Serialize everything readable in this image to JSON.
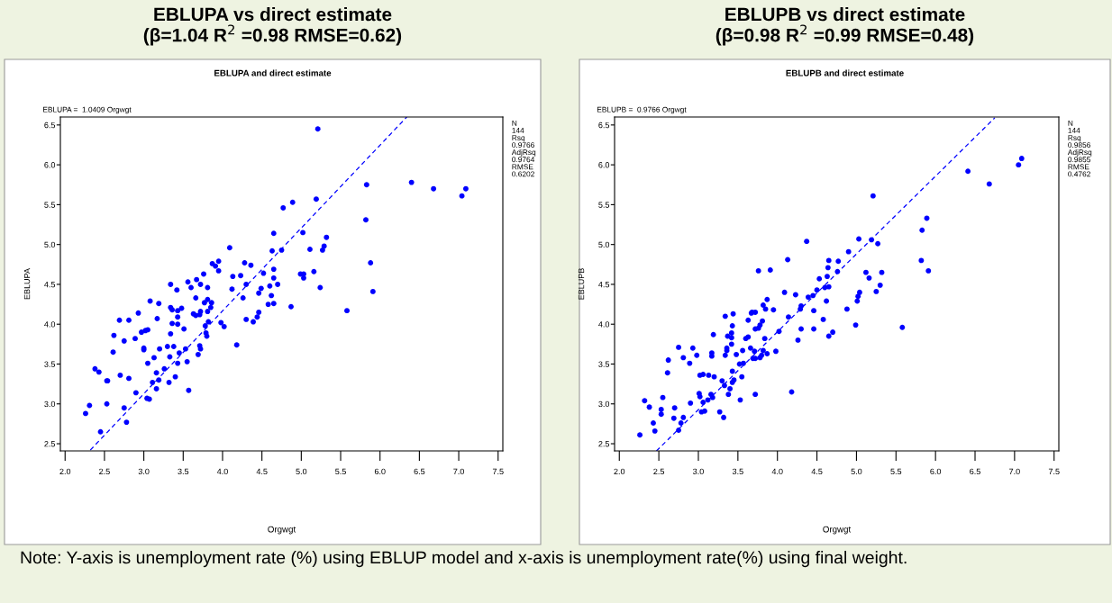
{
  "chart_data": [
    {
      "type": "scatter",
      "title": "EBLUPA vs direct estimate\n(β=1.04 R$^{2}$ =0.98 RMSE=0.62)",
      "subtitle": "EBLUPA and direct estimate",
      "xlabel": "Orgwgt",
      "ylabel": "EBLUPA",
      "annotations": [
        "EBLUPA =  1.0409 Orgwgt",
        "N\n144\nRsq\n0.9766\nAdjRsq\n0.9764\nRMSE\n0.6202",
        "Note: Y-axis is unemployment rate (%) using EBLUP model and x-axis is unemployment rate(%) using final weight."
      ],
      "xlim": [
        1.94,
        7.56
      ],
      "ylim": [
        2.41,
        6.6
      ],
      "xticks": [
        {
          "value": 2,
          "label": "2.0"
        },
        2.5,
        {
          "value": 3,
          "label": "3.0"
        },
        3.5,
        {
          "value": 4,
          "label": "4.0"
        },
        4.5,
        {
          "value": 5,
          "label": "5.0"
        },
        5.5,
        {
          "value": 6,
          "label": "6.0"
        },
        6.5,
        {
          "value": 7,
          "label": "7.0"
        },
        7.5
      ],
      "yticks": [
        2.5,
        {
          "value": 3,
          "label": "3.0"
        },
        3.5,
        {
          "value": 4,
          "label": "4.0"
        },
        4.5,
        {
          "value": 5,
          "label": "5.0"
        },
        5.5,
        {
          "value": 6,
          "label": "6.0"
        },
        6.5
      ],
      "grid": false,
      "legend": false,
      "series": [
        {
          "type": "scatter",
          "marker": "circle",
          "color": "#0000ff",
          "x": [
            5.21,
            5.83,
            6.4,
            6.68,
            7.04,
            7.09,
            5.19,
            4.89,
            4.77,
            4.65,
            5.02,
            5.82,
            5.32,
            5.29,
            5.27,
            5.11,
            4.75,
            4.63,
            4.09,
            5.88,
            3.87,
            3.91,
            3.95,
            3.95,
            4.28,
            4.36,
            3.76,
            4.65,
            5.16,
            4.52,
            4.99,
            5.03,
            4.13,
            4.23,
            4.65,
            5.03,
            3.34,
            3.42,
            3.56,
            3.6,
            3.67,
            3.72,
            3.81,
            3.66,
            3.77,
            3.81,
            3.86,
            3.85,
            3.81,
            3.72,
            3.71,
            3.63,
            3.66,
            4.12,
            4.3,
            4.26,
            4.49,
            4.46,
            4.6,
            4.7,
            4.62,
            4.58,
            4.65,
            4.46,
            4.44,
            4.3,
            4.39,
            4.87,
            5.24,
            5.91,
            5.58,
            4.18,
            3.98,
            4.02,
            3.82,
            3.78,
            3.79,
            3.8,
            3.71,
            3.72,
            3.69,
            3.48,
            3.43,
            3.43,
            3.43,
            3.36,
            3.36,
            3.34,
            3.51,
            3.34,
            3.3,
            3.38,
            3.33,
            3.45,
            3.53,
            3.55,
            3.43,
            3.4,
            3.32,
            3.57,
            3.26,
            3.19,
            3.16,
            3.16,
            3.11,
            3.13,
            3.05,
            3.04,
            3.07,
            3.08,
            3.19,
            3.17,
            3.2,
            3.05,
            3.02,
            2.97,
            2.89,
            2.93,
            2.81,
            2.69,
            2.75,
            2.62,
            2.61,
            3.0,
            3.0,
            2.9,
            2.38,
            2.43,
            2.53,
            2.54,
            2.7,
            2.81,
            2.26,
            2.31,
            2.53,
            2.75,
            2.78,
            2.45
          ],
          "values": [
            6.45,
            5.75,
            5.78,
            5.7,
            5.61,
            5.7,
            5.57,
            5.53,
            5.46,
            5.14,
            5.15,
            5.31,
            5.09,
            4.98,
            4.93,
            4.94,
            4.93,
            4.92,
            4.96,
            4.77,
            4.76,
            4.73,
            4.79,
            4.67,
            4.77,
            4.74,
            4.63,
            4.69,
            4.66,
            4.64,
            4.63,
            4.63,
            4.6,
            4.61,
            4.58,
            4.58,
            4.5,
            4.43,
            4.53,
            4.46,
            4.56,
            4.5,
            4.46,
            4.33,
            4.27,
            4.31,
            4.27,
            4.21,
            4.16,
            4.16,
            4.12,
            4.13,
            4.11,
            4.44,
            4.5,
            4.33,
            4.45,
            4.39,
            4.48,
            4.5,
            4.36,
            4.25,
            4.26,
            4.15,
            4.09,
            4.06,
            4.03,
            4.22,
            4.46,
            4.41,
            4.17,
            3.74,
            4.02,
            3.97,
            4.03,
            3.98,
            3.89,
            3.85,
            3.73,
            3.69,
            3.62,
            4.2,
            4.17,
            4.09,
            4.0,
            4.01,
            4.18,
            4.21,
            3.94,
            3.88,
            3.72,
            3.72,
            3.59,
            3.64,
            3.69,
            3.53,
            3.51,
            3.34,
            3.27,
            3.17,
            3.44,
            3.3,
            3.39,
            3.19,
            3.27,
            3.58,
            3.51,
            3.07,
            3.06,
            4.29,
            4.26,
            4.07,
            3.69,
            3.93,
            3.92,
            3.9,
            3.82,
            4.14,
            4.05,
            4.05,
            3.79,
            3.86,
            3.65,
            3.68,
            3.7,
            3.14,
            3.44,
            3.4,
            3.29,
            3.29,
            3.36,
            3.32,
            2.88,
            2.98,
            3.0,
            2.95,
            2.77,
            2.65
          ]
        },
        {
          "type": "line",
          "line_style": "dashed",
          "color": "#0000ff",
          "x": [
            2.32,
            6.34
          ],
          "values": [
            2.42,
            6.6
          ]
        }
      ]
    },
    {
      "type": "scatter",
      "title": "EBLUPB vs direct estimate\n(β=0.98 R$^{2}$ =0.99 RMSE=0.48)",
      "subtitle": "EBLUPB and direct estimate",
      "xlabel": "Orgwgt",
      "ylabel": "EBLUPB",
      "annotations": [
        "EBLUPB =  0.9766 Orgwgt",
        "N\n144\nRsq\n0.9856\nAdjRsq\n0.9855\nRMSE\n0.4762"
      ],
      "xlim": [
        1.94,
        7.56
      ],
      "ylim": [
        2.41,
        6.6
      ],
      "xticks": [
        {
          "value": 2,
          "label": "2.0"
        },
        2.5,
        {
          "value": 3,
          "label": "3.0"
        },
        3.5,
        {
          "value": 4,
          "label": "4.0"
        },
        4.5,
        {
          "value": 5,
          "label": "5.0"
        },
        5.5,
        {
          "value": 6,
          "label": "6.0"
        },
        6.5,
        {
          "value": 7,
          "label": "7.0"
        },
        7.5
      ],
      "yticks": [
        2.5,
        {
          "value": 3,
          "label": "3.0"
        },
        3.5,
        {
          "value": 4,
          "label": "4.0"
        },
        4.5,
        {
          "value": 5,
          "label": "5.0"
        },
        5.5,
        {
          "value": 6,
          "label": "6.0"
        },
        6.5
      ],
      "grid": false,
      "legend": false,
      "series": [
        {
          "type": "scatter",
          "marker": "circle",
          "color": "#0000ff",
          "x": [
            7.09,
            7.05,
            6.41,
            6.68,
            5.21,
            5.89,
            5.83,
            5.82,
            5.91,
            5.19,
            5.27,
            5.03,
            4.9,
            4.37,
            4.65,
            4.77,
            4.64,
            4.76,
            4.13,
            3.91,
            3.76,
            5.12,
            5.32,
            5.16,
            4.53,
            4.63,
            4.65,
            4.6,
            4.5,
            4.45,
            4.39,
            4.62,
            4.58,
            5.3,
            5.25,
            5.04,
            5.02,
            5.01,
            4.88,
            4.99,
            5.58,
            4.65,
            4.7,
            4.46,
            4.46,
            4.3,
            4.29,
            4.3,
            4.26,
            4.23,
            4.14,
            4.09,
            4.02,
            4.18,
            3.98,
            3.87,
            3.85,
            3.82,
            3.95,
            3.81,
            3.78,
            3.76,
            3.72,
            3.84,
            3.87,
            3.82,
            3.8,
            3.78,
            3.72,
            3.68,
            3.67,
            3.63,
            3.63,
            3.6,
            3.66,
            3.71,
            3.69,
            3.72,
            3.72,
            3.44,
            3.43,
            3.42,
            3.42,
            3.42,
            3.34,
            3.37,
            3.36,
            3.36,
            3.34,
            3.48,
            3.56,
            3.57,
            3.52,
            3.43,
            3.45,
            3.43,
            3.4,
            3.38,
            3.33,
            3.3,
            3.55,
            3.53,
            3.32,
            3.27,
            3.19,
            3.17,
            3.17,
            3.2,
            3.13,
            3.06,
            3.02,
            3.18,
            3.16,
            3.12,
            3.06,
            3.01,
            3.02,
            3.04,
            3.08,
            2.98,
            2.93,
            2.89,
            2.9,
            2.81,
            2.75,
            2.62,
            2.61,
            2.55,
            2.53,
            2.53,
            2.7,
            2.69,
            2.81,
            2.78,
            2.75,
            2.45,
            2.43,
            2.38,
            2.32,
            2.26
          ],
          "values": [
            6.08,
            6.0,
            5.92,
            5.76,
            5.61,
            5.33,
            5.18,
            4.8,
            4.67,
            5.06,
            5.01,
            5.07,
            4.91,
            5.04,
            4.8,
            4.79,
            4.71,
            4.66,
            4.81,
            4.68,
            4.67,
            4.65,
            4.65,
            4.58,
            4.57,
            4.6,
            4.47,
            4.46,
            4.43,
            4.36,
            4.34,
            4.29,
            4.06,
            4.49,
            4.41,
            4.4,
            4.35,
            4.29,
            4.19,
            3.99,
            3.96,
            3.85,
            3.9,
            4.17,
            3.94,
            4.23,
            4.19,
            3.94,
            3.8,
            4.37,
            4.09,
            4.4,
            3.91,
            3.15,
            3.66,
            4.31,
            4.19,
            4.24,
            4.18,
            4.04,
            3.99,
            3.95,
            3.94,
            3.82,
            3.63,
            3.67,
            3.61,
            3.58,
            4.15,
            4.15,
            4.14,
            4.05,
            3.84,
            3.82,
            3.7,
            3.66,
            3.57,
            3.57,
            3.12,
            4.13,
            3.98,
            3.89,
            3.83,
            3.75,
            4.1,
            3.85,
            3.7,
            3.67,
            3.61,
            3.62,
            3.67,
            3.51,
            3.5,
            3.41,
            3.3,
            3.27,
            3.19,
            3.12,
            3.23,
            3.29,
            3.34,
            3.05,
            2.83,
            2.9,
            3.87,
            3.64,
            3.6,
            3.34,
            3.36,
            3.37,
            3.36,
            3.08,
            3.12,
            3.05,
            3.02,
            3.13,
            3.09,
            2.9,
            2.91,
            3.61,
            3.7,
            3.51,
            3.01,
            3.58,
            3.71,
            3.55,
            3.39,
            3.08,
            2.93,
            2.87,
            2.95,
            2.82,
            2.83,
            2.76,
            2.67,
            2.66,
            2.76,
            2.96,
            3.04,
            2.61
          ]
        },
        {
          "type": "line",
          "line_style": "dashed",
          "color": "#0000ff",
          "x": [
            2.47,
            6.75
          ],
          "values": [
            2.41,
            6.59
          ]
        }
      ]
    }
  ]
}
